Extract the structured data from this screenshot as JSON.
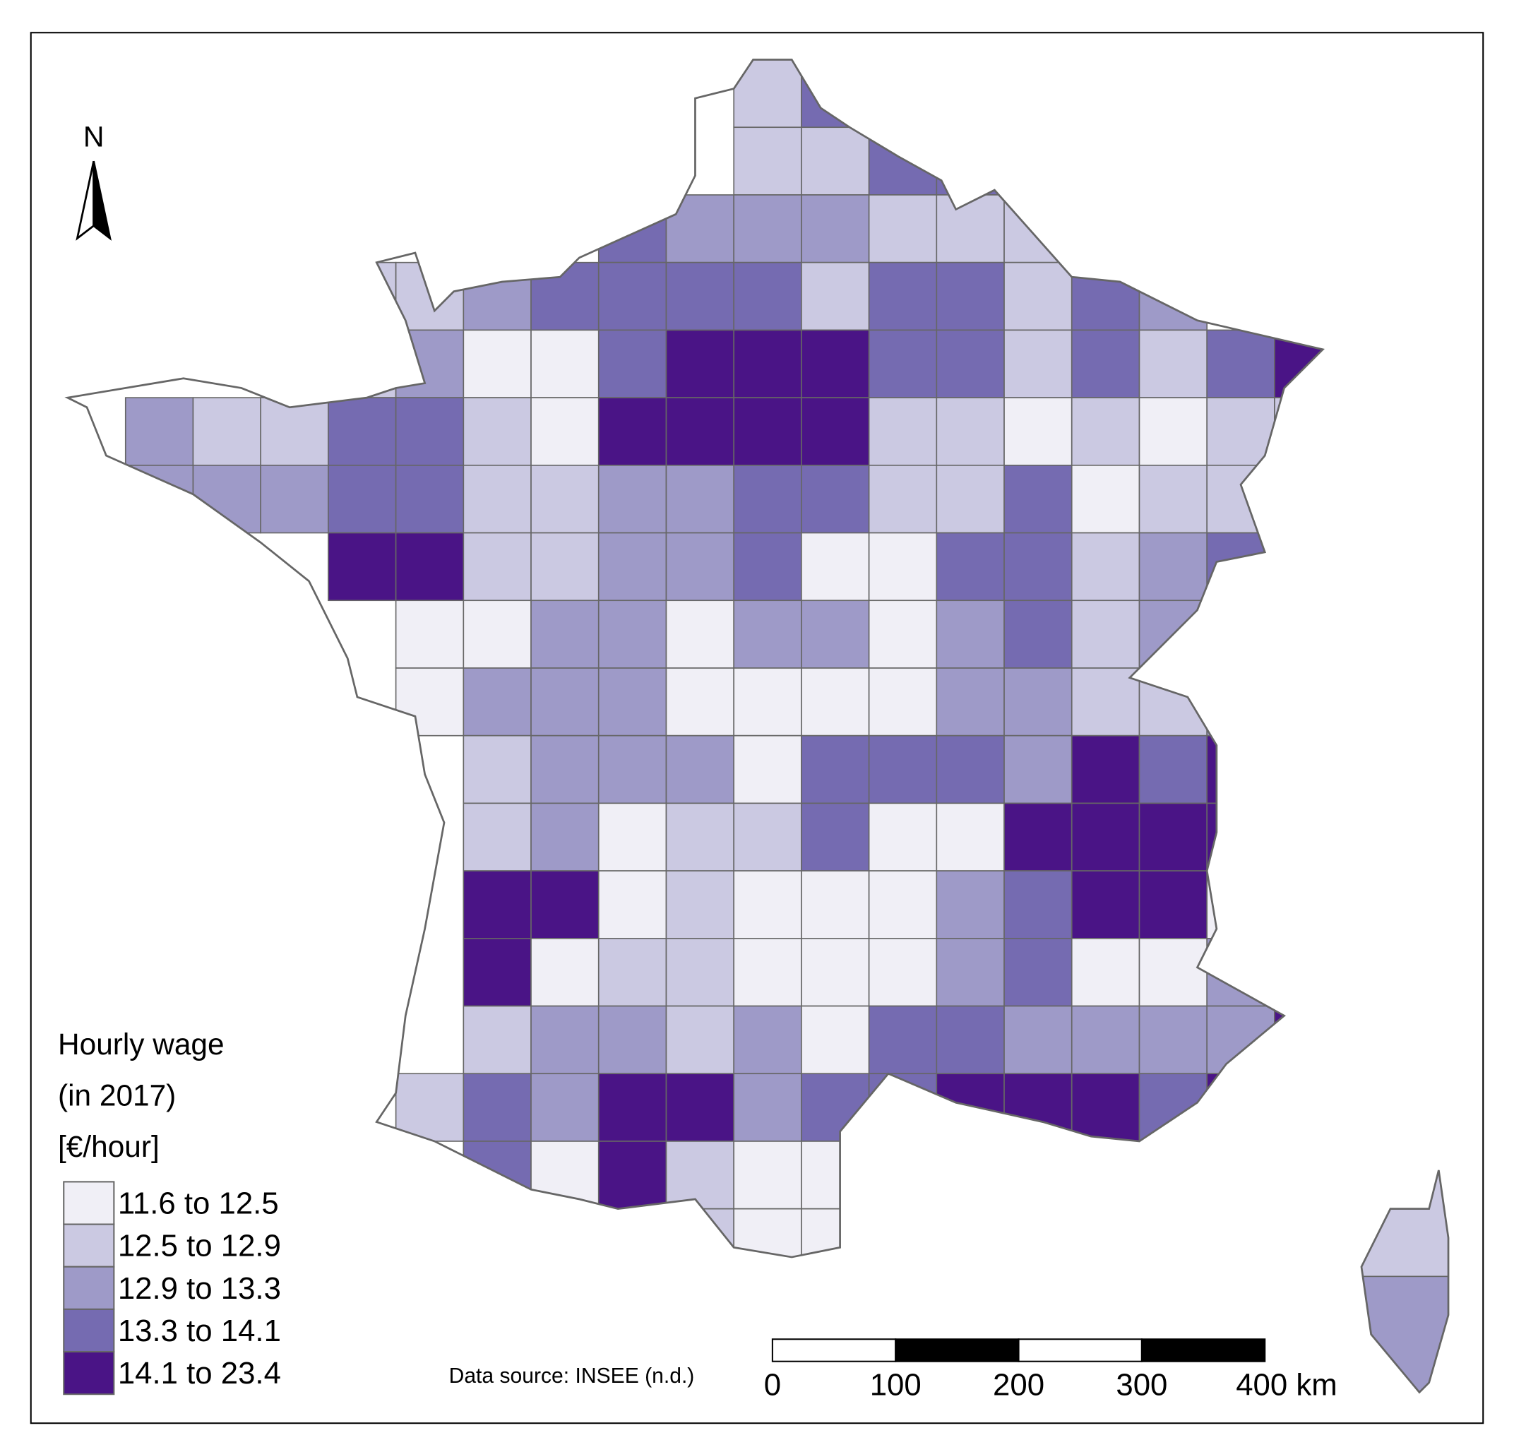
{
  "north_label": "N",
  "legend": {
    "title": [
      "Hourly wage",
      "(in 2017)",
      "[€/hour]"
    ],
    "classes": [
      {
        "label": "11.6 to 12.5",
        "color": "#f0eff6"
      },
      {
        "label": "12.5 to 12.9",
        "color": "#cbc9e2"
      },
      {
        "label": "12.9 to 13.3",
        "color": "#9e9ac8"
      },
      {
        "label": "13.3 to 14.1",
        "color": "#756bb1"
      },
      {
        "label": "14.1 to 23.4",
        "color": "#4a1486"
      }
    ]
  },
  "source": "Data source: INSEE (n.d.)",
  "scale_bar": {
    "ticks": [
      0,
      100,
      200,
      300,
      {
        "value": 400,
        "label": "400 km"
      }
    ]
  }
}
